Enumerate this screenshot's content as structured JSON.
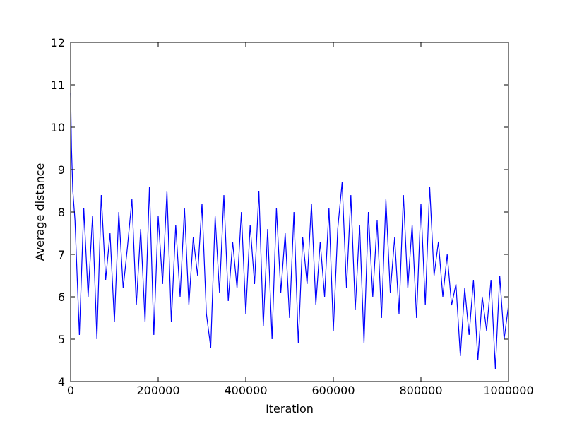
{
  "chart_data": {
    "type": "line",
    "xlabel": "Iteration",
    "ylabel": "Average distance",
    "x": [
      0,
      2000,
      5000,
      10000,
      20000,
      30000,
      40000,
      50000,
      60000,
      70000,
      80000,
      90000,
      100000,
      110000,
      120000,
      130000,
      140000,
      150000,
      160000,
      170000,
      180000,
      190000,
      200000,
      210000,
      220000,
      230000,
      240000,
      250000,
      260000,
      270000,
      280000,
      290000,
      300000,
      310000,
      320000,
      330000,
      340000,
      350000,
      360000,
      370000,
      380000,
      390000,
      400000,
      410000,
      420000,
      430000,
      440000,
      450000,
      460000,
      470000,
      480000,
      490000,
      500000,
      510000,
      520000,
      530000,
      540000,
      550000,
      560000,
      570000,
      580000,
      590000,
      600000,
      610000,
      620000,
      630000,
      640000,
      650000,
      660000,
      670000,
      680000,
      690000,
      700000,
      710000,
      720000,
      730000,
      740000,
      750000,
      760000,
      770000,
      780000,
      790000,
      800000,
      810000,
      820000,
      830000,
      840000,
      850000,
      860000,
      870000,
      880000,
      890000,
      900000,
      910000,
      920000,
      930000,
      940000,
      950000,
      960000,
      970000,
      980000,
      990000,
      1000000
    ],
    "series": [
      {
        "color": "#0000ff",
        "values": [
          10.8,
          9.5,
          8.5,
          7.8,
          5.1,
          8.1,
          6.0,
          7.9,
          5.0,
          8.4,
          6.4,
          7.5,
          5.4,
          8.0,
          6.2,
          7.2,
          8.3,
          5.8,
          7.6,
          5.4,
          8.6,
          5.1,
          7.9,
          6.3,
          8.5,
          5.4,
          7.7,
          6.0,
          8.1,
          5.8,
          7.4,
          6.5,
          8.2,
          5.6,
          4.8,
          7.9,
          6.1,
          8.4,
          5.9,
          7.3,
          6.2,
          8.0,
          5.6,
          7.7,
          6.3,
          8.5,
          5.3,
          7.6,
          5.0,
          8.1,
          6.1,
          7.5,
          5.5,
          8.0,
          4.9,
          7.4,
          6.3,
          8.2,
          5.8,
          7.3,
          6.0,
          8.1,
          5.2,
          7.6,
          8.7,
          6.2,
          8.4,
          5.7,
          7.7,
          4.9,
          8.0,
          6.0,
          7.8,
          5.5,
          8.3,
          6.1,
          7.4,
          5.6,
          8.4,
          6.2,
          7.7,
          5.5,
          8.2,
          5.8,
          8.6,
          6.5,
          7.3,
          6.0,
          7.0,
          5.8,
          6.3,
          4.6,
          6.2,
          5.1,
          6.4,
          4.5,
          6.0,
          5.2,
          6.4,
          4.3,
          6.5,
          5.0,
          5.8
        ]
      }
    ],
    "xlim": [
      0,
      1000000
    ],
    "xticks": [
      0,
      200000,
      400000,
      600000,
      800000,
      1000000
    ],
    "ylim": [
      4,
      12
    ],
    "yticks": [
      4,
      5,
      6,
      7,
      8,
      9,
      10,
      11,
      12
    ]
  }
}
